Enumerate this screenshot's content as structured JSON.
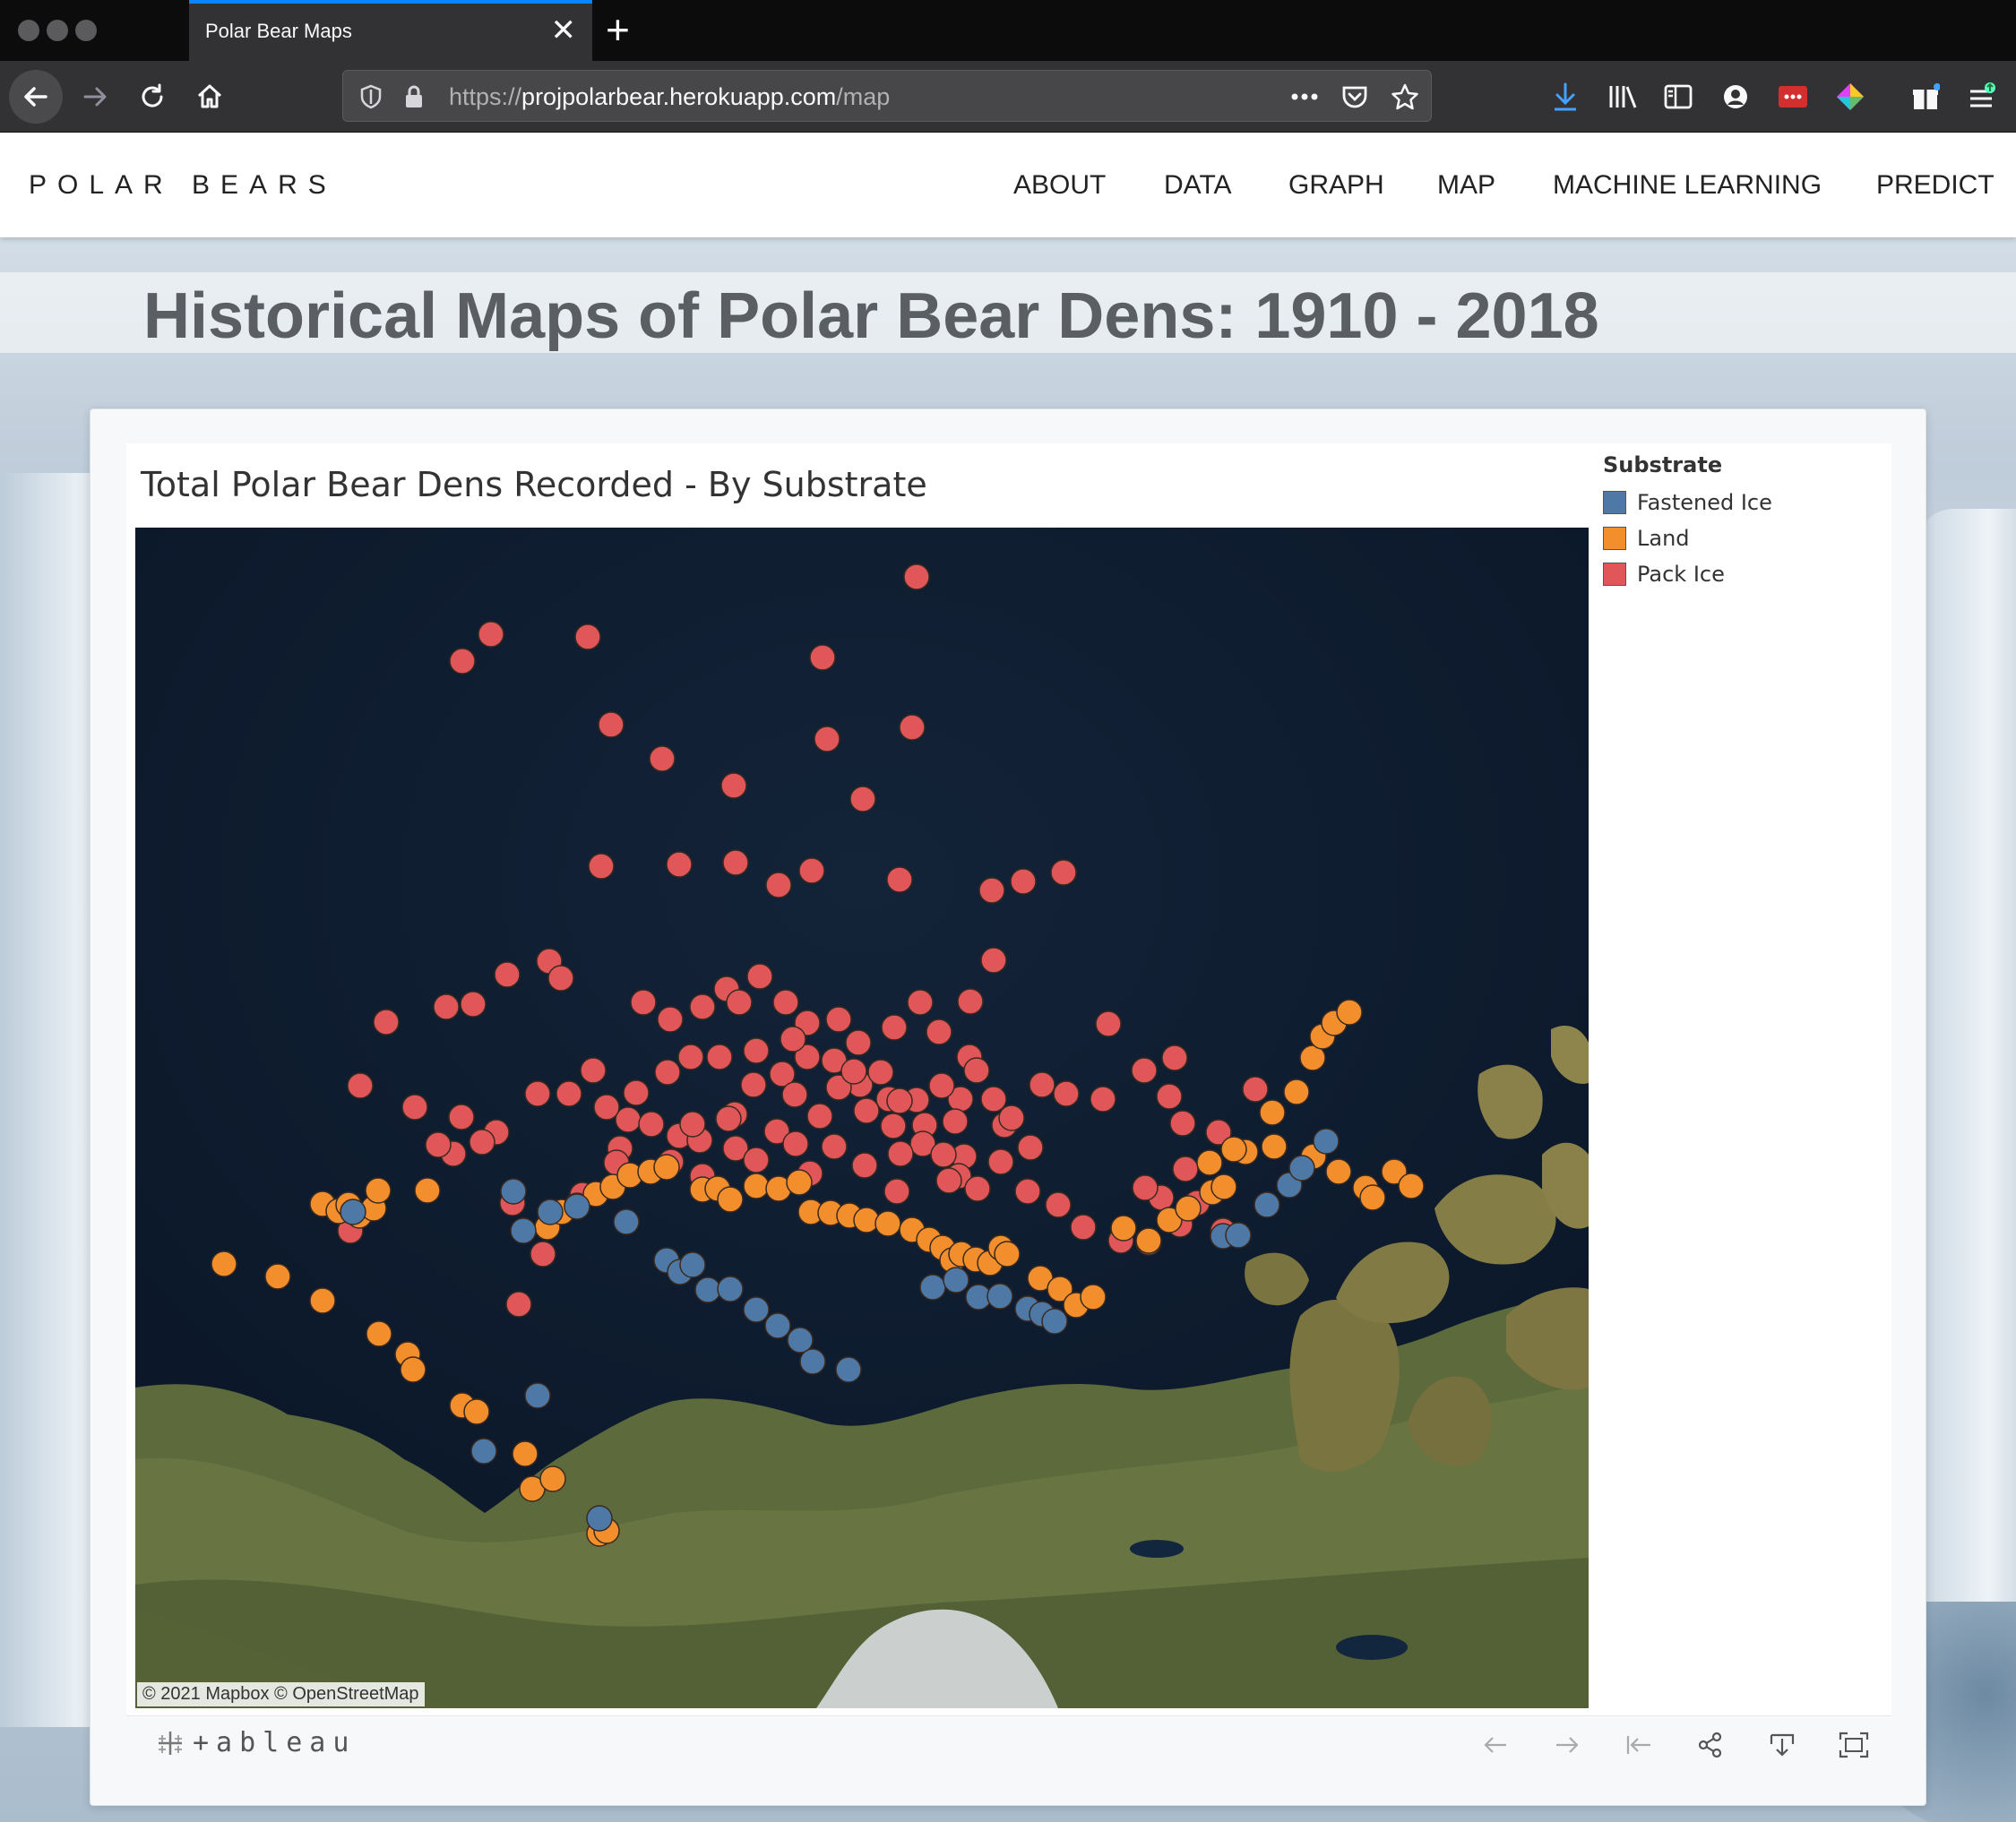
{
  "browser": {
    "tab_title": "Polar Bear Maps",
    "tab_close": "✕",
    "new_tab": "+",
    "url_prefix": "https://",
    "url_host": "projpolarbear.herokuapp.com",
    "url_path": "/map"
  },
  "site": {
    "brand": "POLAR BEARS",
    "nav": [
      "ABOUT",
      "DATA",
      "GRAPH",
      "MAP",
      "MACHINE LEARNING",
      "PREDICT"
    ]
  },
  "page": {
    "headline": "Historical Maps of Polar Bear Dens: 1910 - 2018"
  },
  "viz": {
    "title": "Total Polar Bear Dens Recorded - By Substrate",
    "attribution": "© 2021 Mapbox  © OpenStreetMap",
    "legend": {
      "title": "Substrate",
      "items": [
        {
          "label": "Fastened Ice",
          "color": "#4e79a7"
        },
        {
          "label": "Land",
          "color": "#f28e2b"
        },
        {
          "label": "Pack Ice",
          "color": "#e15759"
        }
      ]
    },
    "toolbar_logo": "+ableau"
  },
  "icons": {
    "browser": [
      "back-icon",
      "forward-icon",
      "reload-icon",
      "home-icon",
      "shield-icon",
      "lock-icon",
      "more-icon",
      "pocket-icon",
      "star-icon",
      "download-icon",
      "library-icon",
      "sidebar-icon",
      "account-icon",
      "extension-icon",
      "extension-icon-2",
      "gift-icon",
      "menu-icon"
    ],
    "tableau": [
      "undo-icon",
      "redo-icon",
      "revert-icon",
      "share-icon",
      "download-icon",
      "fullscreen-icon"
    ]
  }
}
